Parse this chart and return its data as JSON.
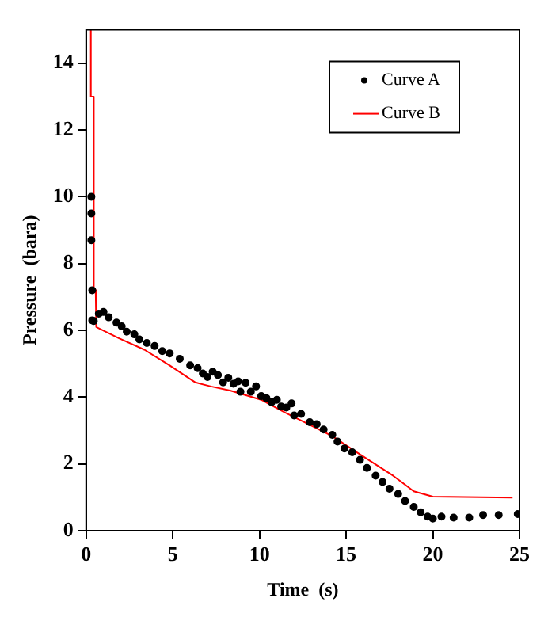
{
  "chart_data": {
    "type": "scatter",
    "xlabel": "Time  (s)",
    "ylabel": "Pressure  (bara)",
    "xlim": [
      0,
      25
    ],
    "xticks": [
      0,
      5,
      10,
      15,
      20,
      25
    ],
    "ylim": [
      0,
      15
    ],
    "yticks": [
      0,
      2,
      4,
      6,
      8,
      10,
      12,
      14
    ],
    "grid": false,
    "legend": "top right",
    "series": [
      {
        "name": "Curve A",
        "type": "scatter",
        "marker": "circle",
        "color": "#000000",
        "x": [
          0.3,
          0.3,
          0.3,
          0.35,
          0.35,
          0.44,
          0.73,
          1.0,
          1.3,
          1.75,
          2.05,
          2.34,
          2.78,
          3.07,
          3.5,
          3.95,
          4.39,
          4.82,
          5.4,
          6.0,
          6.43,
          6.73,
          7.0,
          7.3,
          7.6,
          7.9,
          8.2,
          8.5,
          8.77,
          8.9,
          9.2,
          9.5,
          9.8,
          10.1,
          10.4,
          10.7,
          11.0,
          11.25,
          11.55,
          11.85,
          12.0,
          12.4,
          12.9,
          13.3,
          13.7,
          14.2,
          14.5,
          14.9,
          15.35,
          15.8,
          16.2,
          16.7,
          17.1,
          17.5,
          18.0,
          18.4,
          18.9,
          19.3,
          19.7,
          20.0,
          20.5,
          21.2,
          22.1,
          22.9,
          23.8,
          24.9
        ],
        "values": [
          10,
          9.5,
          8.7,
          7.2,
          6.3,
          6.28,
          6.5,
          6.55,
          6.39,
          6.23,
          6.12,
          5.96,
          5.88,
          5.73,
          5.62,
          5.53,
          5.38,
          5.31,
          5.15,
          4.95,
          4.87,
          4.71,
          4.6,
          4.76,
          4.66,
          4.44,
          4.58,
          4.4,
          4.47,
          4.16,
          4.43,
          4.16,
          4.32,
          4.03,
          3.97,
          3.85,
          3.92,
          3.72,
          3.69,
          3.81,
          3.45,
          3.5,
          3.25,
          3.19,
          3.03,
          2.87,
          2.67,
          2.46,
          2.35,
          2.12,
          1.88,
          1.65,
          1.46,
          1.26,
          1.1,
          0.89,
          0.71,
          0.55,
          0.42,
          0.36,
          0.42,
          0.39,
          0.39,
          0.47,
          0.47,
          0.5
        ]
      },
      {
        "name": "Curve B",
        "type": "line",
        "marker": "none",
        "line_style": "solid",
        "color": "#ff0000",
        "x": [
          0.27,
          0.27,
          0.44,
          0.44,
          0.55,
          0.58,
          1.9,
          3.36,
          4.82,
          6.3,
          7.2,
          8.3,
          10.1,
          11.5,
          12.4,
          14.2,
          15.6,
          17.7,
          18.9,
          20,
          24.6
        ],
        "values": [
          15,
          13,
          13,
          7.2,
          7.2,
          6.1,
          5.76,
          5.42,
          4.95,
          4.44,
          4.32,
          4.2,
          3.92,
          3.53,
          3.3,
          2.83,
          2.35,
          1.65,
          1.18,
          1.02,
          0.99
        ]
      }
    ]
  }
}
